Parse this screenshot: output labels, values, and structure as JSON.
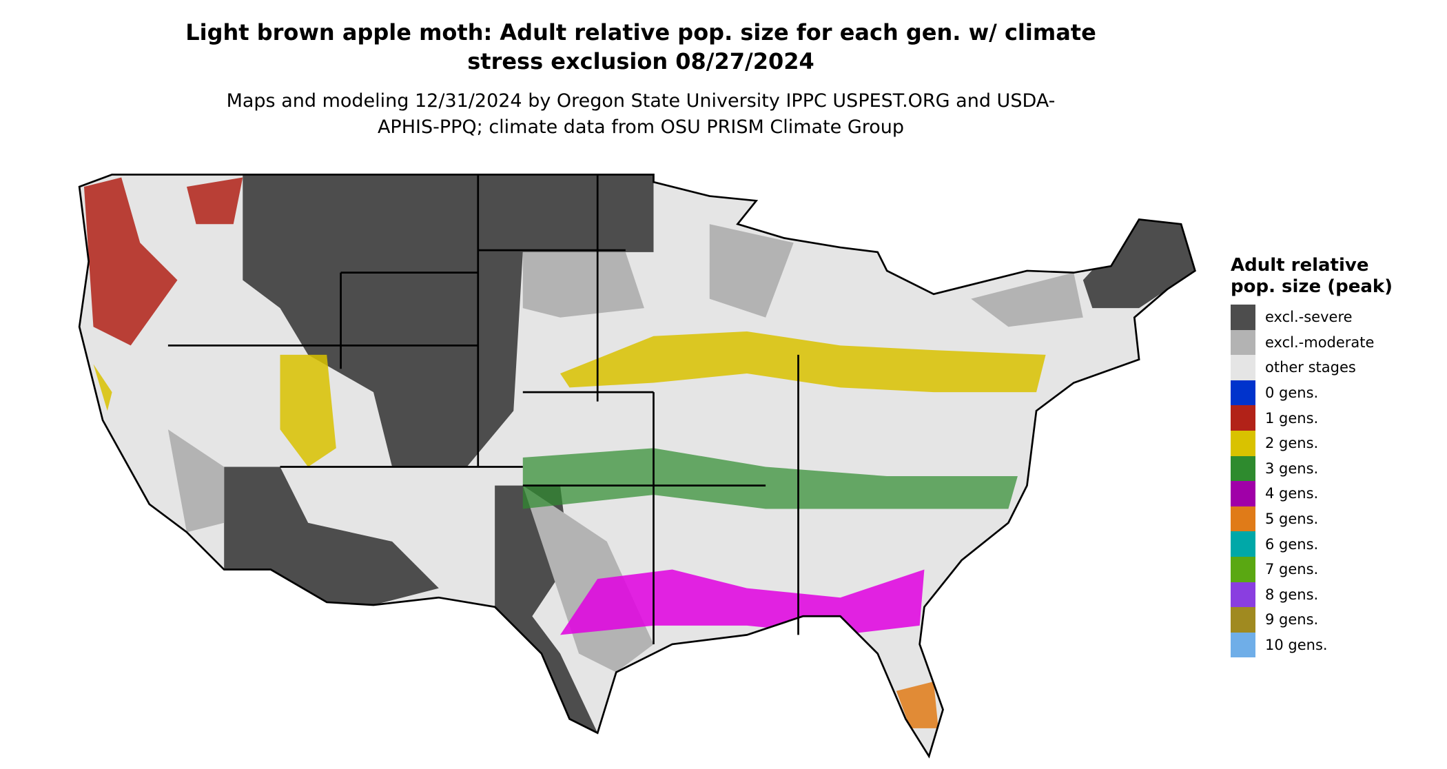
{
  "title": "Light brown apple moth: Adult relative pop. size for each gen. w/ climate stress exclusion 08/27/2024",
  "subtitle": "Maps and modeling 12/31/2024 by Oregon State University IPPC USPEST.ORG and USDA-APHIS-PPQ; climate data from OSU PRISM Climate Group",
  "legend": {
    "title": "Adult relative pop. size (peak)",
    "items": [
      {
        "label": "excl.-severe",
        "color": "#4d4d4d"
      },
      {
        "label": "excl.-moderate",
        "color": "#b3b3b3"
      },
      {
        "label": "other stages",
        "color": "#e5e5e5"
      },
      {
        "label": "0 gens.",
        "color": "#0033cc"
      },
      {
        "label": "1 gens.",
        "color": "#b22218"
      },
      {
        "label": "2 gens.",
        "color": "#d9c200"
      },
      {
        "label": "3 gens.",
        "color": "#2e8b2e"
      },
      {
        "label": "4 gens.",
        "color": "#a000a8"
      },
      {
        "label": "5 gens.",
        "color": "#e07b18"
      },
      {
        "label": "6 gens.",
        "color": "#00a8a8"
      },
      {
        "label": "7 gens.",
        "color": "#5aa812"
      },
      {
        "label": "8 gens.",
        "color": "#8a3ee0"
      },
      {
        "label": "9 gens.",
        "color": "#a08a20"
      },
      {
        "label": "10 gens.",
        "color": "#6faee8"
      }
    ]
  }
}
